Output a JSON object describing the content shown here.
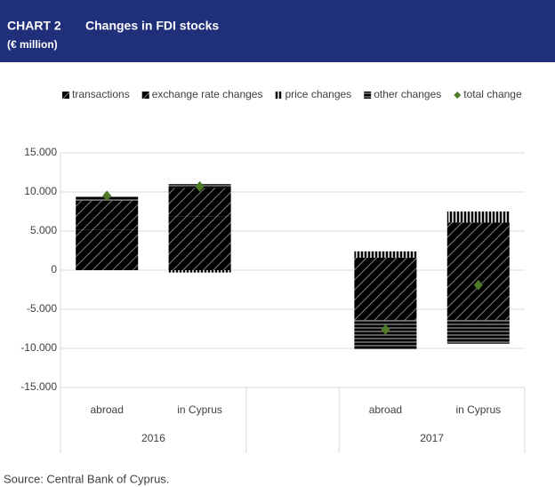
{
  "chart_data": {
    "type": "stacked_bar",
    "title": "CHART 2",
    "subtitle": "Changes in FDI stocks",
    "unit": "(€ million)",
    "source": "Source: Central Bank of Cyprus.",
    "categories": [
      "abroad",
      "in Cyprus",
      null,
      "abroad",
      "in Cyprus"
    ],
    "years": [
      "2016",
      "2016",
      null,
      "2017",
      "2017"
    ],
    "series": [
      {
        "name": "transactions",
        "color": "#5b9bd5",
        "pattern": "diagonal",
        "values": [
          5200,
          6900,
          null,
          1600,
          6100
        ]
      },
      {
        "name": "exchange rate changes",
        "color": "#f4a460",
        "pattern": "diagonal",
        "values": [
          3700,
          3600,
          null,
          -6400,
          -6400
        ]
      },
      {
        "name": "price changes",
        "color": "#8c8c8c",
        "pattern": "vertical",
        "values": [
          0,
          -300,
          null,
          800,
          1400
        ]
      },
      {
        "name": "other changes",
        "color": "#c678dd",
        "pattern": "horizontal",
        "values": [
          500,
          500,
          null,
          -3700,
          -3000
        ]
      }
    ],
    "total": {
      "name": "total change",
      "color": "#4e7a2a",
      "values": [
        9500,
        10700,
        null,
        -7600,
        -1900
      ]
    },
    "ylim": [
      -15000,
      15000
    ],
    "yticks": [
      {
        "value": -15000,
        "label": "-15.000"
      },
      {
        "value": -10000,
        "label": "-10.000"
      },
      {
        "value": -5000,
        "label": "-5.000"
      },
      0,
      {
        "value": 5000,
        "label": "5.000"
      },
      {
        "value": 10000,
        "label": "10.000"
      },
      {
        "value": 15000,
        "label": "15.000"
      }
    ],
    "grid": true,
    "legend": "top"
  }
}
